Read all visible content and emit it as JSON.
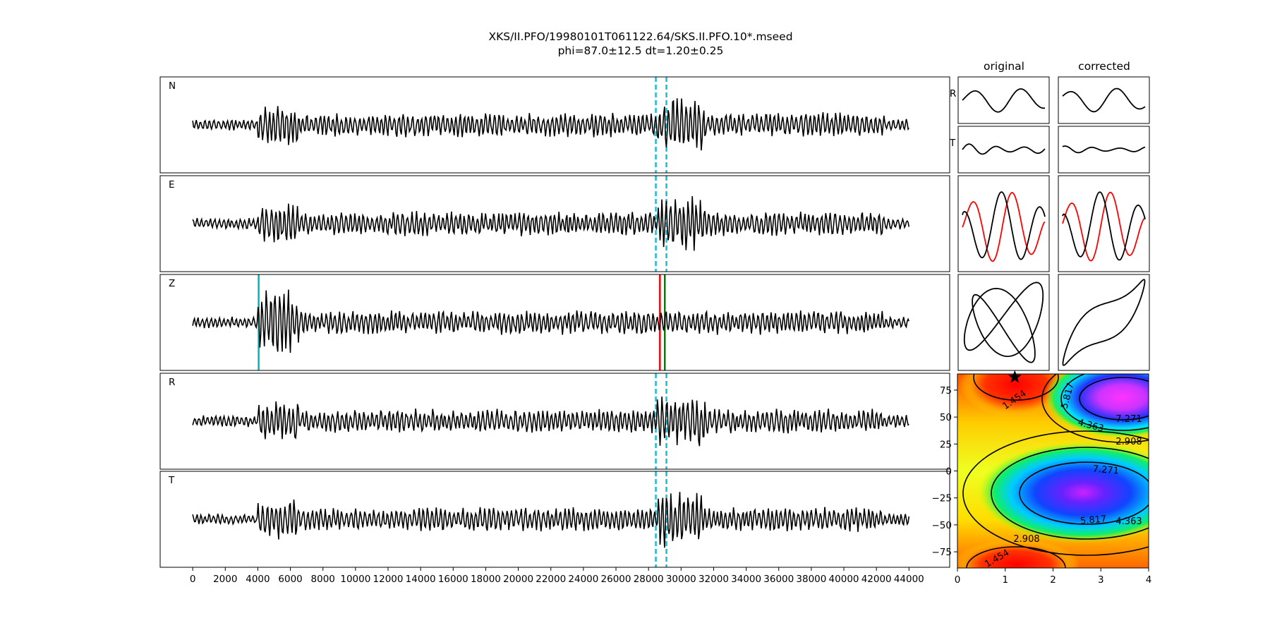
{
  "title_line1": "XKS/II.PFO/19980101T061122.64/SKS.II.PFO.10*.mseed",
  "title_line2": "phi=87.0±12.5 dt=1.20±0.25",
  "col_titles": {
    "original": "original",
    "corrected": "corrected"
  },
  "chart_data": [
    {
      "type": "line",
      "name": "three-component seismograms",
      "panels": [
        "N",
        "E",
        "Z",
        "R",
        "T"
      ],
      "xlim": [
        -2000,
        46500
      ],
      "x_ticks": [
        0,
        2000,
        4000,
        6000,
        8000,
        10000,
        12000,
        14000,
        16000,
        18000,
        20000,
        22000,
        24000,
        26000,
        28000,
        30000,
        32000,
        34000,
        36000,
        38000,
        40000,
        42000,
        44000
      ],
      "x_tick_labels": [
        "0",
        "2000",
        "4000",
        "6000",
        "8000",
        "10000",
        "12000",
        "14000",
        "16000",
        "18000",
        "20000",
        "22000",
        "24000",
        "26000",
        "28000",
        "30000",
        "32000",
        "34000",
        "36000",
        "38000",
        "40000",
        "42000",
        "44000"
      ],
      "trace_x_range": [
        0,
        44000
      ],
      "window_lines_dashed_teal": [
        28450,
        29100
      ],
      "z_markers": {
        "teal": 4050,
        "red": 28700,
        "green": 29000
      },
      "colors": {
        "trace": "#000000",
        "window": "#17becf",
        "red": "#ff0000",
        "green": "#008000",
        "teal": "#00b3b3"
      }
    },
    {
      "type": "line",
      "name": "particle motion comparison",
      "rows": [
        "R",
        "T"
      ],
      "columns": [
        "original",
        "corrected"
      ],
      "overlay_colors": [
        "#ff0000",
        "#000000"
      ]
    },
    {
      "type": "heatmap",
      "name": "error surface",
      "xlim": [
        0,
        4
      ],
      "ylim": [
        -90,
        90
      ],
      "x_ticks": [
        0,
        1,
        2,
        3,
        4
      ],
      "x_tick_labels": [
        "0",
        "1",
        "2",
        "3",
        "4"
      ],
      "y_ticks": [
        75,
        50,
        25,
        0,
        -25,
        -50,
        -75
      ],
      "y_tick_labels": [
        "75",
        "50",
        "25",
        "0",
        "−25",
        "−50",
        "−75"
      ],
      "contour_levels": [
        "1.454",
        "2.908",
        "4.363",
        "5.817",
        "7.271"
      ],
      "best_fit_star": {
        "dt": 1.2,
        "phi": 87.0
      },
      "colormap": "rainbow"
    }
  ]
}
